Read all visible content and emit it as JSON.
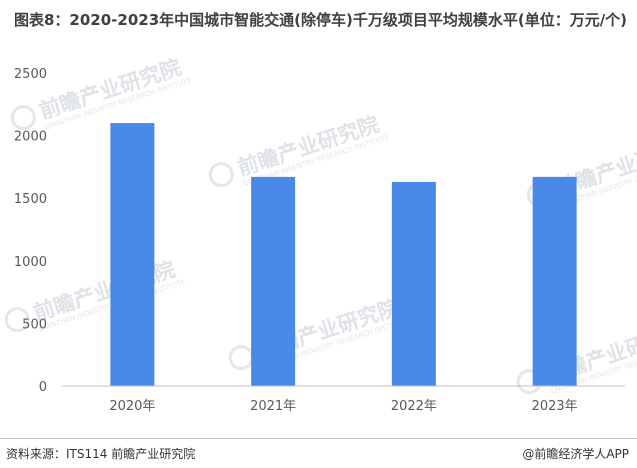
{
  "chart_data": {
    "type": "bar",
    "title": "图表8：2020-2023年中国城市智能交通(除停车)千万级项目平均规模水平(单位：万元/个)",
    "categories": [
      "2020年",
      "2021年",
      "2022年",
      "2023年"
    ],
    "series": [
      {
        "values": [
          2100,
          1670,
          1630,
          1670
        ]
      }
    ],
    "ylim": [
      0,
      2500
    ],
    "yticks": [
      0,
      500,
      1000,
      1500,
      2000,
      2500
    ],
    "xlabel": "",
    "ylabel": "",
    "grid": false,
    "colors": {
      "bar": "#4a89e8",
      "axis": "#bfbfbf"
    }
  },
  "watermark": {
    "text": "前瞻产业研究院",
    "sub": "QIANZHAN INDUSTRY RESEARCH INSTITUTE"
  },
  "footer": {
    "source": "资料来源：ITS114 前瞻产业研究院",
    "brand": "@前瞻经济学人APP"
  }
}
